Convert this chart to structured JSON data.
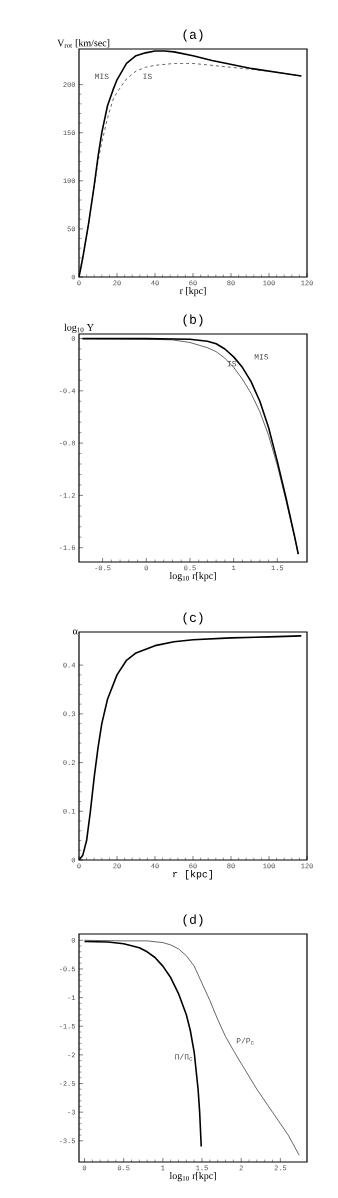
{
  "chart_data": [
    {
      "type": "line",
      "title": "(a)",
      "xlabel": "r [kpc]",
      "ylabel": "V$_{rot}$ [km/sec]",
      "xlim": [
        0,
        120
      ],
      "ylim": [
        0,
        237
      ],
      "xticks": [
        0,
        20,
        40,
        60,
        80,
        100,
        120
      ],
      "yticks": [
        0,
        50,
        100,
        150,
        200
      ],
      "series": [
        {
          "color": "#000000",
          "line_style": "solid",
          "x": [
            0,
            2,
            5,
            8,
            10,
            12,
            15,
            18,
            20,
            25,
            30,
            35,
            40,
            45,
            50,
            60,
            70,
            80,
            90,
            100,
            110,
            117
          ],
          "values": [
            0,
            20,
            55,
            95,
            125,
            150,
            178,
            195,
            205,
            222,
            230,
            233,
            235,
            235,
            234,
            230,
            225,
            221,
            217,
            214,
            211,
            209
          ]
        },
        {
          "color": "#000000",
          "line_style": "dashed",
          "x": [
            0,
            5,
            10,
            12,
            15,
            18,
            20,
            25,
            30,
            35,
            40,
            50,
            60,
            70,
            80,
            90,
            100,
            110,
            117
          ],
          "values": [
            0,
            55,
            120,
            140,
            165,
            185,
            192,
            206,
            214,
            218,
            220,
            222,
            222,
            220,
            218,
            216,
            214,
            211,
            209
          ]
        }
      ],
      "annotations": [
        "MIS",
        "IS"
      ]
    },
    {
      "type": "line",
      "title": "(b)",
      "xlabel": "log$_{10}$ r[kpc]",
      "ylabel": "log$_{10}$ Y",
      "xlim": [
        -0.77,
        1.84
      ],
      "ylim": [
        -1.71,
        0.035
      ],
      "xticks": [
        -0.5,
        0,
        0.5,
        1,
        1.5
      ],
      "yticks": [
        0,
        -0.4,
        -0.8,
        -1.2,
        -1.6
      ],
      "series": [
        {
          "color": "#000000",
          "line_style": "solid",
          "x": [
            -0.73,
            0,
            0.5,
            0.7,
            0.8,
            0.9,
            1.0,
            1.1,
            1.2,
            1.3,
            1.4,
            1.5,
            1.6,
            1.7,
            1.74
          ],
          "values": [
            0,
            0,
            -0.005,
            -0.02,
            -0.04,
            -0.08,
            -0.14,
            -0.22,
            -0.33,
            -0.48,
            -0.68,
            -0.94,
            -1.22,
            -1.52,
            -1.65
          ]
        },
        {
          "color": "#000000",
          "line_style": "solid",
          "x": [
            -0.73,
            0,
            0.3,
            0.5,
            0.7,
            0.8,
            0.9,
            1.0,
            1.1,
            1.2,
            1.3,
            1.4,
            1.5,
            1.6,
            1.7,
            1.74
          ],
          "values": [
            0,
            -0.005,
            -0.01,
            -0.03,
            -0.07,
            -0.1,
            -0.15,
            -0.22,
            -0.31,
            -0.42,
            -0.56,
            -0.74,
            -0.97,
            -1.24,
            -1.53,
            -1.65
          ]
        }
      ],
      "annotations": [
        "MIS",
        "IS"
      ]
    },
    {
      "type": "line",
      "title": "(c)",
      "xlabel": "r  [kpc]",
      "ylabel": "α",
      "xlim": [
        0,
        120
      ],
      "ylim": [
        0,
        0.468
      ],
      "xticks": [
        0,
        20,
        40,
        60,
        80,
        100,
        120
      ],
      "yticks": [
        0,
        0.1,
        0.2,
        0.3,
        0.4
      ],
      "series": [
        {
          "color": "#000000",
          "line_style": "solid",
          "x": [
            0,
            2,
            4,
            6,
            8,
            10,
            12,
            15,
            20,
            25,
            30,
            40,
            50,
            60,
            80,
            100,
            117
          ],
          "values": [
            0,
            0.01,
            0.04,
            0.1,
            0.17,
            0.23,
            0.28,
            0.33,
            0.38,
            0.41,
            0.425,
            0.44,
            0.448,
            0.452,
            0.456,
            0.458,
            0.46
          ]
        }
      ]
    },
    {
      "type": "line",
      "title": "(d)",
      "xlabel": "log$_{10}$ r[kpc]",
      "xlim": [
        -0.07,
        2.84
      ],
      "ylim": [
        -3.87,
        0.11
      ],
      "xticks": [
        0,
        0.5,
        1,
        1.5,
        2,
        2.5
      ],
      "yticks": [
        0,
        -0.5,
        -1,
        -1.5,
        -2,
        -2.5,
        -3,
        -3.5
      ],
      "series": [
        {
          "color": "#000000",
          "line_style": "solid",
          "x": [
            0,
            0.3,
            0.5,
            0.7,
            0.8,
            0.9,
            1.0,
            1.1,
            1.2,
            1.3,
            1.35,
            1.4,
            1.45,
            1.47,
            1.49
          ],
          "values": [
            -0.02,
            -0.03,
            -0.06,
            -0.13,
            -0.2,
            -0.3,
            -0.45,
            -0.65,
            -0.93,
            -1.3,
            -1.57,
            -1.95,
            -2.6,
            -3.0,
            -3.6
          ]
        },
        {
          "color": "#000000",
          "line_style": "solid",
          "x": [
            0,
            0.5,
            0.8,
            1.0,
            1.1,
            1.2,
            1.3,
            1.4,
            1.5,
            1.6,
            1.7,
            1.8,
            1.9,
            2.0,
            2.2,
            2.4,
            2.6,
            2.74
          ],
          "values": [
            0,
            -0.01,
            -0.01,
            -0.04,
            -0.08,
            -0.15,
            -0.27,
            -0.45,
            -0.75,
            -1.05,
            -1.38,
            -1.68,
            -1.92,
            -2.15,
            -2.6,
            -3.0,
            -3.4,
            -3.75
          ]
        }
      ],
      "annotations": [
        "Π/Π$_{c}$",
        "P/P$_{c}$"
      ]
    }
  ]
}
